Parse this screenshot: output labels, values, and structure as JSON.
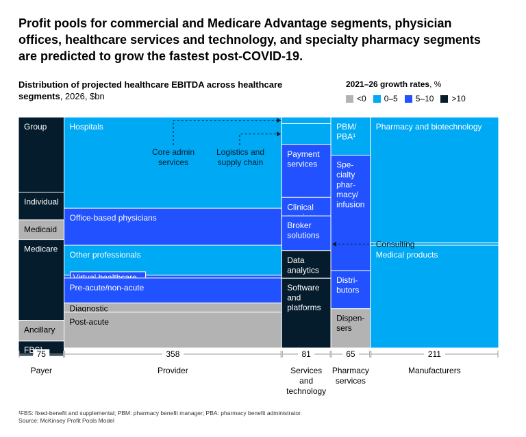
{
  "headline": "Profit pools for commercial and Medicare Advantage segments, physician offices, healthcare services and technology, and specialty pharmacy segments are predicted to grow the fastest post-COVID-19.",
  "subtitle_bold": "Distribution of projected healthcare EBITDA across healthcare segments",
  "subtitle_rest": ", 2026, $bn",
  "legend": {
    "title_bold": "2021–26 growth rates",
    "title_rest": ", %",
    "items": [
      {
        "label": "<0",
        "color": "#b3b3b3"
      },
      {
        "label": "0–5",
        "color": "#00a9f4"
      },
      {
        "label": "5–10",
        "color": "#2251ff"
      },
      {
        "label": ">10",
        "color": "#051c2c"
      }
    ]
  },
  "chart_data": {
    "type": "marimekko",
    "title": "Distribution of projected healthcare EBITDA across healthcare segments, 2026, $bn",
    "columns": [
      {
        "name": "Payer",
        "total": 75,
        "segments": [
          {
            "label": "Group",
            "share": 0.325,
            "growth": ">10"
          },
          {
            "label": "Individual",
            "share": 0.12,
            "growth": ">10"
          },
          {
            "label": "Medicaid",
            "share": 0.085,
            "growth": "<0"
          },
          {
            "label": "Medicare",
            "share": 0.35,
            "growth": ">10"
          },
          {
            "label": "Ancillary",
            "share": 0.09,
            "growth": "<0"
          },
          {
            "label": "FBS¹",
            "share": 0.065,
            "growth": ">10"
          }
        ]
      },
      {
        "name": "Provider",
        "total": 358,
        "segments": [
          {
            "label": "Hospitals",
            "share": 0.395,
            "growth": "0–5"
          },
          {
            "label": "Office-based physicians",
            "share": 0.16,
            "growth": "5–10"
          },
          {
            "label": "Other professionals",
            "share": 0.13,
            "growth": "0–5"
          },
          {
            "label": "Virtual healthcare",
            "share": 0.012,
            "growth": "5–10"
          },
          {
            "label": "Pre-acute/non-acute",
            "share": 0.108,
            "growth": "5–10"
          },
          {
            "label": "Diagnostic",
            "share": 0.04,
            "growth": "<0"
          },
          {
            "label": "Post-acute",
            "share": 0.155,
            "growth": "<0"
          }
        ]
      },
      {
        "name": "Services and technology",
        "total": 81,
        "segments": [
          {
            "label": "Core admin services",
            "share": 0.028,
            "growth": "0–5"
          },
          {
            "label": "Logistics and supply chain",
            "share": 0.09,
            "growth": "0–5"
          },
          {
            "label": "Payment services",
            "share": 0.23,
            "growth": "5–10"
          },
          {
            "label": "Clinical services",
            "share": 0.08,
            "growth": "5–10"
          },
          {
            "label": "Broker solutions",
            "share": 0.15,
            "growth": "5–10"
          },
          {
            "label": "Data analytics",
            "share": 0.12,
            "growth": ">10"
          },
          {
            "label": "Software and platforms",
            "share": 0.302,
            "growth": ">10"
          }
        ]
      },
      {
        "name": "Pharmacy services",
        "total": 65,
        "segments": [
          {
            "label": "PBM/ PBA¹",
            "share": 0.165,
            "growth": "0–5"
          },
          {
            "label": "Specialty pharmacy/ infusion",
            "share": 0.5,
            "growth": "5–10"
          },
          {
            "label": "Distributors",
            "share": 0.165,
            "growth": "5–10"
          },
          {
            "label": "Dispensers",
            "share": 0.17,
            "growth": "<0"
          }
        ]
      },
      {
        "name": "Manufacturers",
        "total": 211,
        "segments": [
          {
            "label": "Pharmacy and biotechnology",
            "share": 0.545,
            "growth": "0–5"
          },
          {
            "label": "Consulting",
            "share": 0.01,
            "growth": "0–5"
          },
          {
            "label": "Medical products",
            "share": 0.445,
            "growth": "0–5"
          }
        ]
      }
    ],
    "callouts": {
      "core_admin": "Core admin services",
      "logistics": "Logistics and supply chain",
      "consulting": "Consulting"
    }
  },
  "footnote": {
    "line1": "¹FBS: fixed-benefit and supplemental; PBM: pharmacy benefit manager; PBA: pharmacy benefit administrator.",
    "line2": "Source: McKinsey Profit Pools Model"
  }
}
